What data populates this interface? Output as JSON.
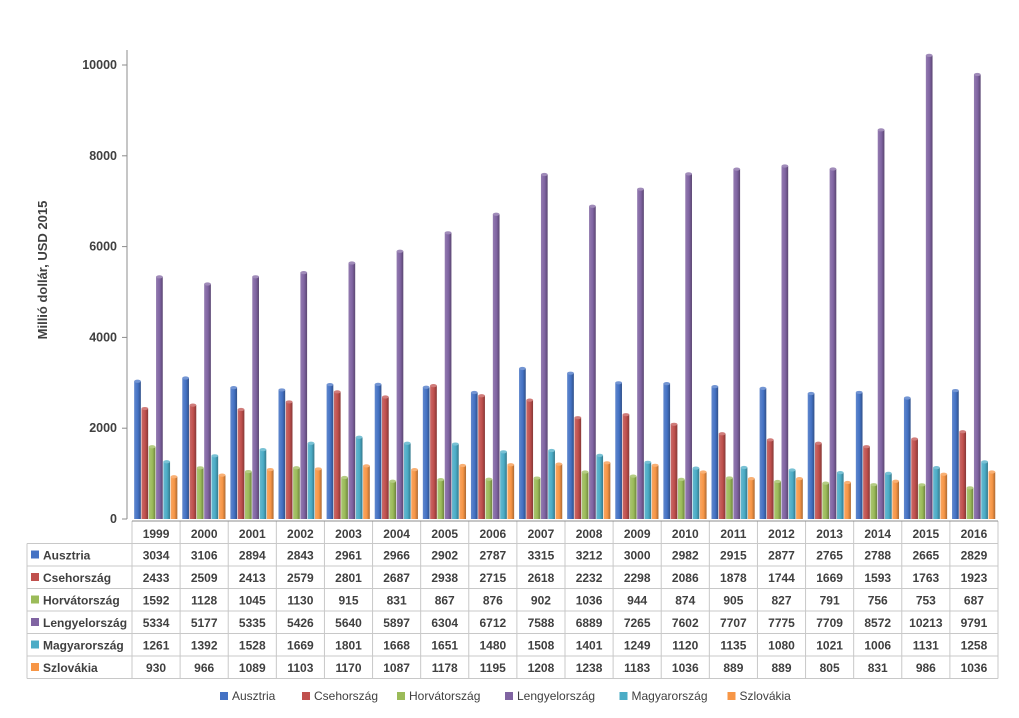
{
  "chart_data": {
    "type": "bar",
    "title": "",
    "xlabel": "",
    "ylabel": "Millió dollár, USD 2015",
    "ylim": [
      0,
      10000
    ],
    "yticks": [
      0,
      2000,
      4000,
      6000,
      8000,
      10000
    ],
    "categories": [
      "1999",
      "2000",
      "2001",
      "2002",
      "2003",
      "2004",
      "2005",
      "2006",
      "2007",
      "2008",
      "2009",
      "2010",
      "2011",
      "2012",
      "2013",
      "2014",
      "2015",
      "2016"
    ],
    "series": [
      {
        "name": "Ausztria",
        "color": "#4472C4",
        "values": [
          3034,
          3106,
          2894,
          2843,
          2961,
          2966,
          2902,
          2787,
          3315,
          3212,
          3000,
          2982,
          2915,
          2877,
          2765,
          2788,
          2665,
          2829
        ]
      },
      {
        "name": "Csehország",
        "color": "#C0504D",
        "values": [
          2433,
          2509,
          2413,
          2579,
          2801,
          2687,
          2938,
          2715,
          2618,
          2232,
          2298,
          2086,
          1878,
          1744,
          1669,
          1593,
          1763,
          1923
        ]
      },
      {
        "name": "Horvátország",
        "color": "#9BBB59",
        "values": [
          1592,
          1128,
          1045,
          1130,
          915,
          831,
          867,
          876,
          902,
          1036,
          944,
          874,
          905,
          827,
          791,
          756,
          753,
          687
        ]
      },
      {
        "name": "Lengyelország",
        "color": "#8064A2",
        "values": [
          5334,
          5177,
          5335,
          5426,
          5640,
          5897,
          6304,
          6712,
          7588,
          6889,
          7265,
          7602,
          7707,
          7775,
          7709,
          8572,
          10213,
          9791
        ]
      },
      {
        "name": "Magyarország",
        "color": "#4BACC6",
        "values": [
          1261,
          1392,
          1528,
          1669,
          1801,
          1668,
          1651,
          1480,
          1508,
          1401,
          1249,
          1120,
          1135,
          1080,
          1021,
          1006,
          1131,
          1258
        ]
      },
      {
        "name": "Szlovákia",
        "color": "#F79646",
        "values": [
          930,
          966,
          1089,
          1103,
          1170,
          1087,
          1178,
          1195,
          1208,
          1238,
          1183,
          1036,
          889,
          889,
          805,
          831,
          986,
          1036
        ]
      }
    ],
    "legend_position": "bottom",
    "data_table": true,
    "grid": false
  }
}
